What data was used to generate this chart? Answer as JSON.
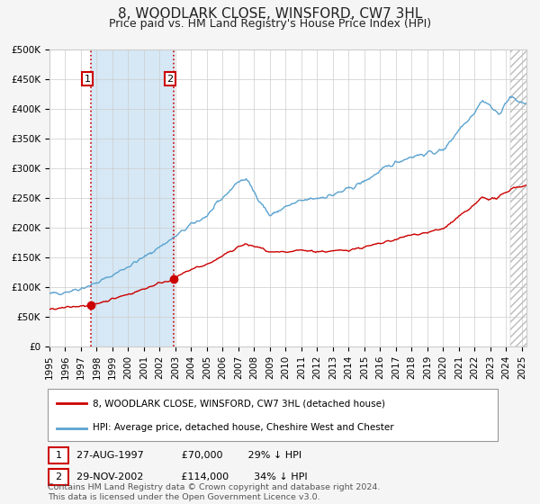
{
  "title": "8, WOODLARK CLOSE, WINSFORD, CW7 3HL",
  "subtitle": "Price paid vs. HM Land Registry's House Price Index (HPI)",
  "ylim": [
    0,
    500000
  ],
  "yticks": [
    0,
    50000,
    100000,
    150000,
    200000,
    250000,
    300000,
    350000,
    400000,
    450000,
    500000
  ],
  "ytick_labels": [
    "£0",
    "£50K",
    "£100K",
    "£150K",
    "£200K",
    "£250K",
    "£300K",
    "£350K",
    "£400K",
    "£450K",
    "£500K"
  ],
  "xlim_start": 1995.0,
  "xlim_end": 2025.3,
  "purchase1_x": 1997.65,
  "purchase1_y": 70000,
  "purchase1_label": "27-AUG-1997",
  "purchase1_price": "£70,000",
  "purchase1_hpi": "29% ↓ HPI",
  "purchase2_x": 2002.91,
  "purchase2_y": 114000,
  "purchase2_label": "29-NOV-2002",
  "purchase2_price": "£114,000",
  "purchase2_hpi": "34% ↓ HPI",
  "hpi_color": "#5ba3d0",
  "property_color": "#cc0000",
  "background_color": "#f5f5f5",
  "plot_bg_color": "#ffffff",
  "grid_color": "#cccccc",
  "legend_label_property": "8, WOODLARK CLOSE, WINSFORD, CW7 3HL (detached house)",
  "legend_label_hpi": "HPI: Average price, detached house, Cheshire West and Chester",
  "footnote1": "Contains HM Land Registry data © Crown copyright and database right 2024.",
  "footnote2": "This data is licensed under the Open Government Licence v3.0.",
  "shaded_region_color": "#d6e8f5",
  "hatch_region_color": "#e8e8e8",
  "title_fontsize": 11,
  "subtitle_fontsize": 9,
  "tick_fontsize": 7.5,
  "hatch_start": 2024.25
}
